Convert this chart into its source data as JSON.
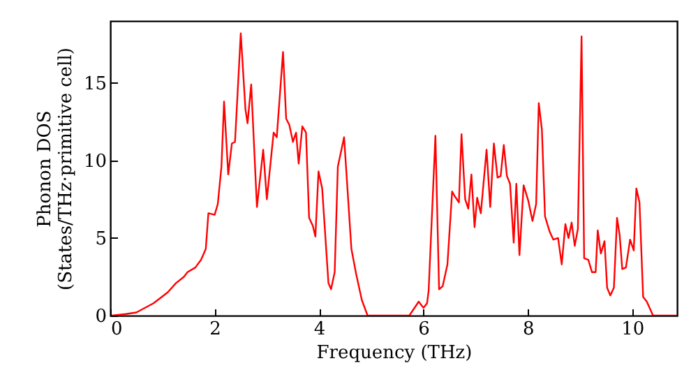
{
  "chart_data": {
    "type": "line",
    "xlabel": "Frequency (THz)",
    "ylabel": "Phonon DOS\n(States/THz·primitive cell)",
    "xlim": [
      0,
      10.86
    ],
    "ylim": [
      0,
      19
    ],
    "xticks": [
      0,
      2,
      4,
      6,
      8,
      10
    ],
    "yticks": [
      0,
      5,
      10,
      15
    ],
    "grid": false,
    "marker": "none",
    "line_style": "solid",
    "series": [
      {
        "color": "#ff0000",
        "x": [
          0.03,
          0.3,
          0.5,
          0.83,
          1.1,
          1.26,
          1.41,
          1.48,
          1.63,
          1.74,
          1.83,
          1.88,
          2.0,
          2.06,
          2.13,
          2.18,
          2.26,
          2.33,
          2.39,
          2.5,
          2.59,
          2.63,
          2.7,
          2.81,
          2.93,
          3.0,
          3.13,
          3.19,
          3.31,
          3.37,
          3.43,
          3.5,
          3.56,
          3.61,
          3.68,
          3.75,
          3.81,
          3.88,
          3.93,
          3.99,
          4.06,
          4.18,
          4.23,
          4.3,
          4.36,
          4.48,
          4.62,
          4.71,
          4.82,
          4.93,
          5.73,
          5.91,
          6.0,
          6.07,
          6.1,
          6.23,
          6.3,
          6.37,
          6.46,
          6.55,
          6.6,
          6.68,
          6.73,
          6.8,
          6.86,
          6.92,
          6.98,
          7.03,
          7.1,
          7.21,
          7.28,
          7.35,
          7.42,
          7.48,
          7.54,
          7.6,
          7.66,
          7.73,
          7.78,
          7.84,
          7.92,
          8.01,
          8.09,
          8.16,
          8.21,
          8.27,
          8.33,
          8.42,
          8.49,
          8.58,
          8.65,
          8.72,
          8.78,
          8.84,
          8.9,
          8.96,
          9.03,
          9.08,
          9.16,
          9.23,
          9.3,
          9.34,
          9.4,
          9.47,
          9.52,
          9.58,
          9.65,
          9.71,
          9.76,
          9.81,
          9.88,
          9.96,
          10.03,
          10.08,
          10.14,
          10.21,
          10.28,
          10.4,
          10.86
        ],
        "values": [
          0,
          0.1,
          0.2,
          0.8,
          1.5,
          2.1,
          2.5,
          2.8,
          3.1,
          3.6,
          4.3,
          6.6,
          6.5,
          7.2,
          9.6,
          13.8,
          9.1,
          11.1,
          11.2,
          18.2,
          13.3,
          12.4,
          14.9,
          7.0,
          10.7,
          7.5,
          11.8,
          11.5,
          17.0,
          12.7,
          12.3,
          11.2,
          11.8,
          9.8,
          12.2,
          11.8,
          6.3,
          5.8,
          5.1,
          9.3,
          8.2,
          2.1,
          1.7,
          2.8,
          9.6,
          11.5,
          4.3,
          2.7,
          1.0,
          0,
          0,
          0.9,
          0.5,
          0.8,
          1.6,
          11.6,
          1.7,
          1.9,
          3.3,
          8.0,
          7.7,
          7.3,
          11.7,
          7.5,
          6.9,
          9.1,
          5.7,
          7.6,
          6.6,
          10.7,
          7.0,
          11.1,
          8.9,
          9.0,
          11.0,
          9.0,
          8.5,
          4.7,
          8.5,
          3.9,
          8.4,
          7.4,
          6.1,
          7.2,
          13.7,
          12.0,
          6.4,
          5.4,
          4.9,
          5.0,
          3.3,
          5.9,
          5.0,
          6.0,
          4.5,
          5.6,
          18.0,
          3.7,
          3.6,
          2.8,
          2.8,
          5.5,
          4.0,
          4.8,
          1.8,
          1.3,
          1.8,
          6.3,
          5.2,
          3.0,
          3.1,
          4.9,
          4.2,
          8.2,
          7.3,
          1.2,
          0.9,
          0,
          0
        ]
      }
    ]
  }
}
